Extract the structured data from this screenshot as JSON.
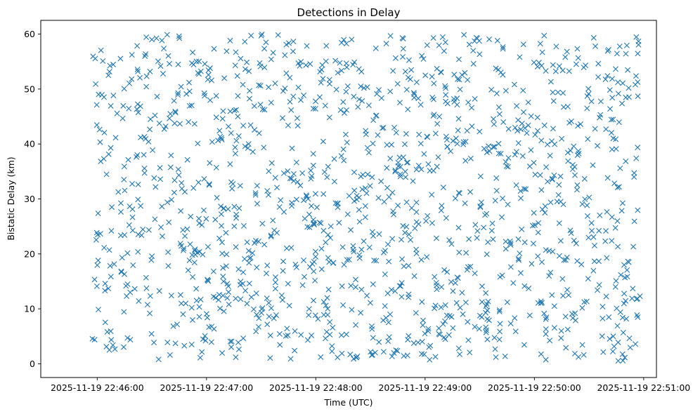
{
  "chart_data": {
    "type": "scatter",
    "title": "Detections in Delay",
    "xlabel": "Time (UTC)",
    "ylabel": "Bistatic Delay (km)",
    "marker": "x",
    "color": "#1f77b4",
    "xlim_seconds_from_22_46_00": [
      -31,
      307
    ],
    "ylim": [
      -2.5,
      62.5
    ],
    "yticks": [
      0,
      10,
      20,
      30,
      40,
      50,
      60
    ],
    "xticks": [
      {
        "t": 0,
        "label": "2025-11-19 22:46:00"
      },
      {
        "t": 60,
        "label": "2025-11-19 22:47:00"
      },
      {
        "t": 120,
        "label": "2025-11-19 22:48:00"
      },
      {
        "t": 180,
        "label": "2025-11-19 22:49:00"
      },
      {
        "t": 240,
        "label": "2025-11-19 22:50:00"
      },
      {
        "t": 300,
        "label": "2025-11-19 22:51:00"
      }
    ],
    "data_range": {
      "t_start": -3,
      "t_end": 298,
      "y_min": 0.5,
      "y_max": 60
    },
    "point_count": 1400,
    "points_note": "Detections are approximately uniformly distributed over the time and delay range"
  }
}
